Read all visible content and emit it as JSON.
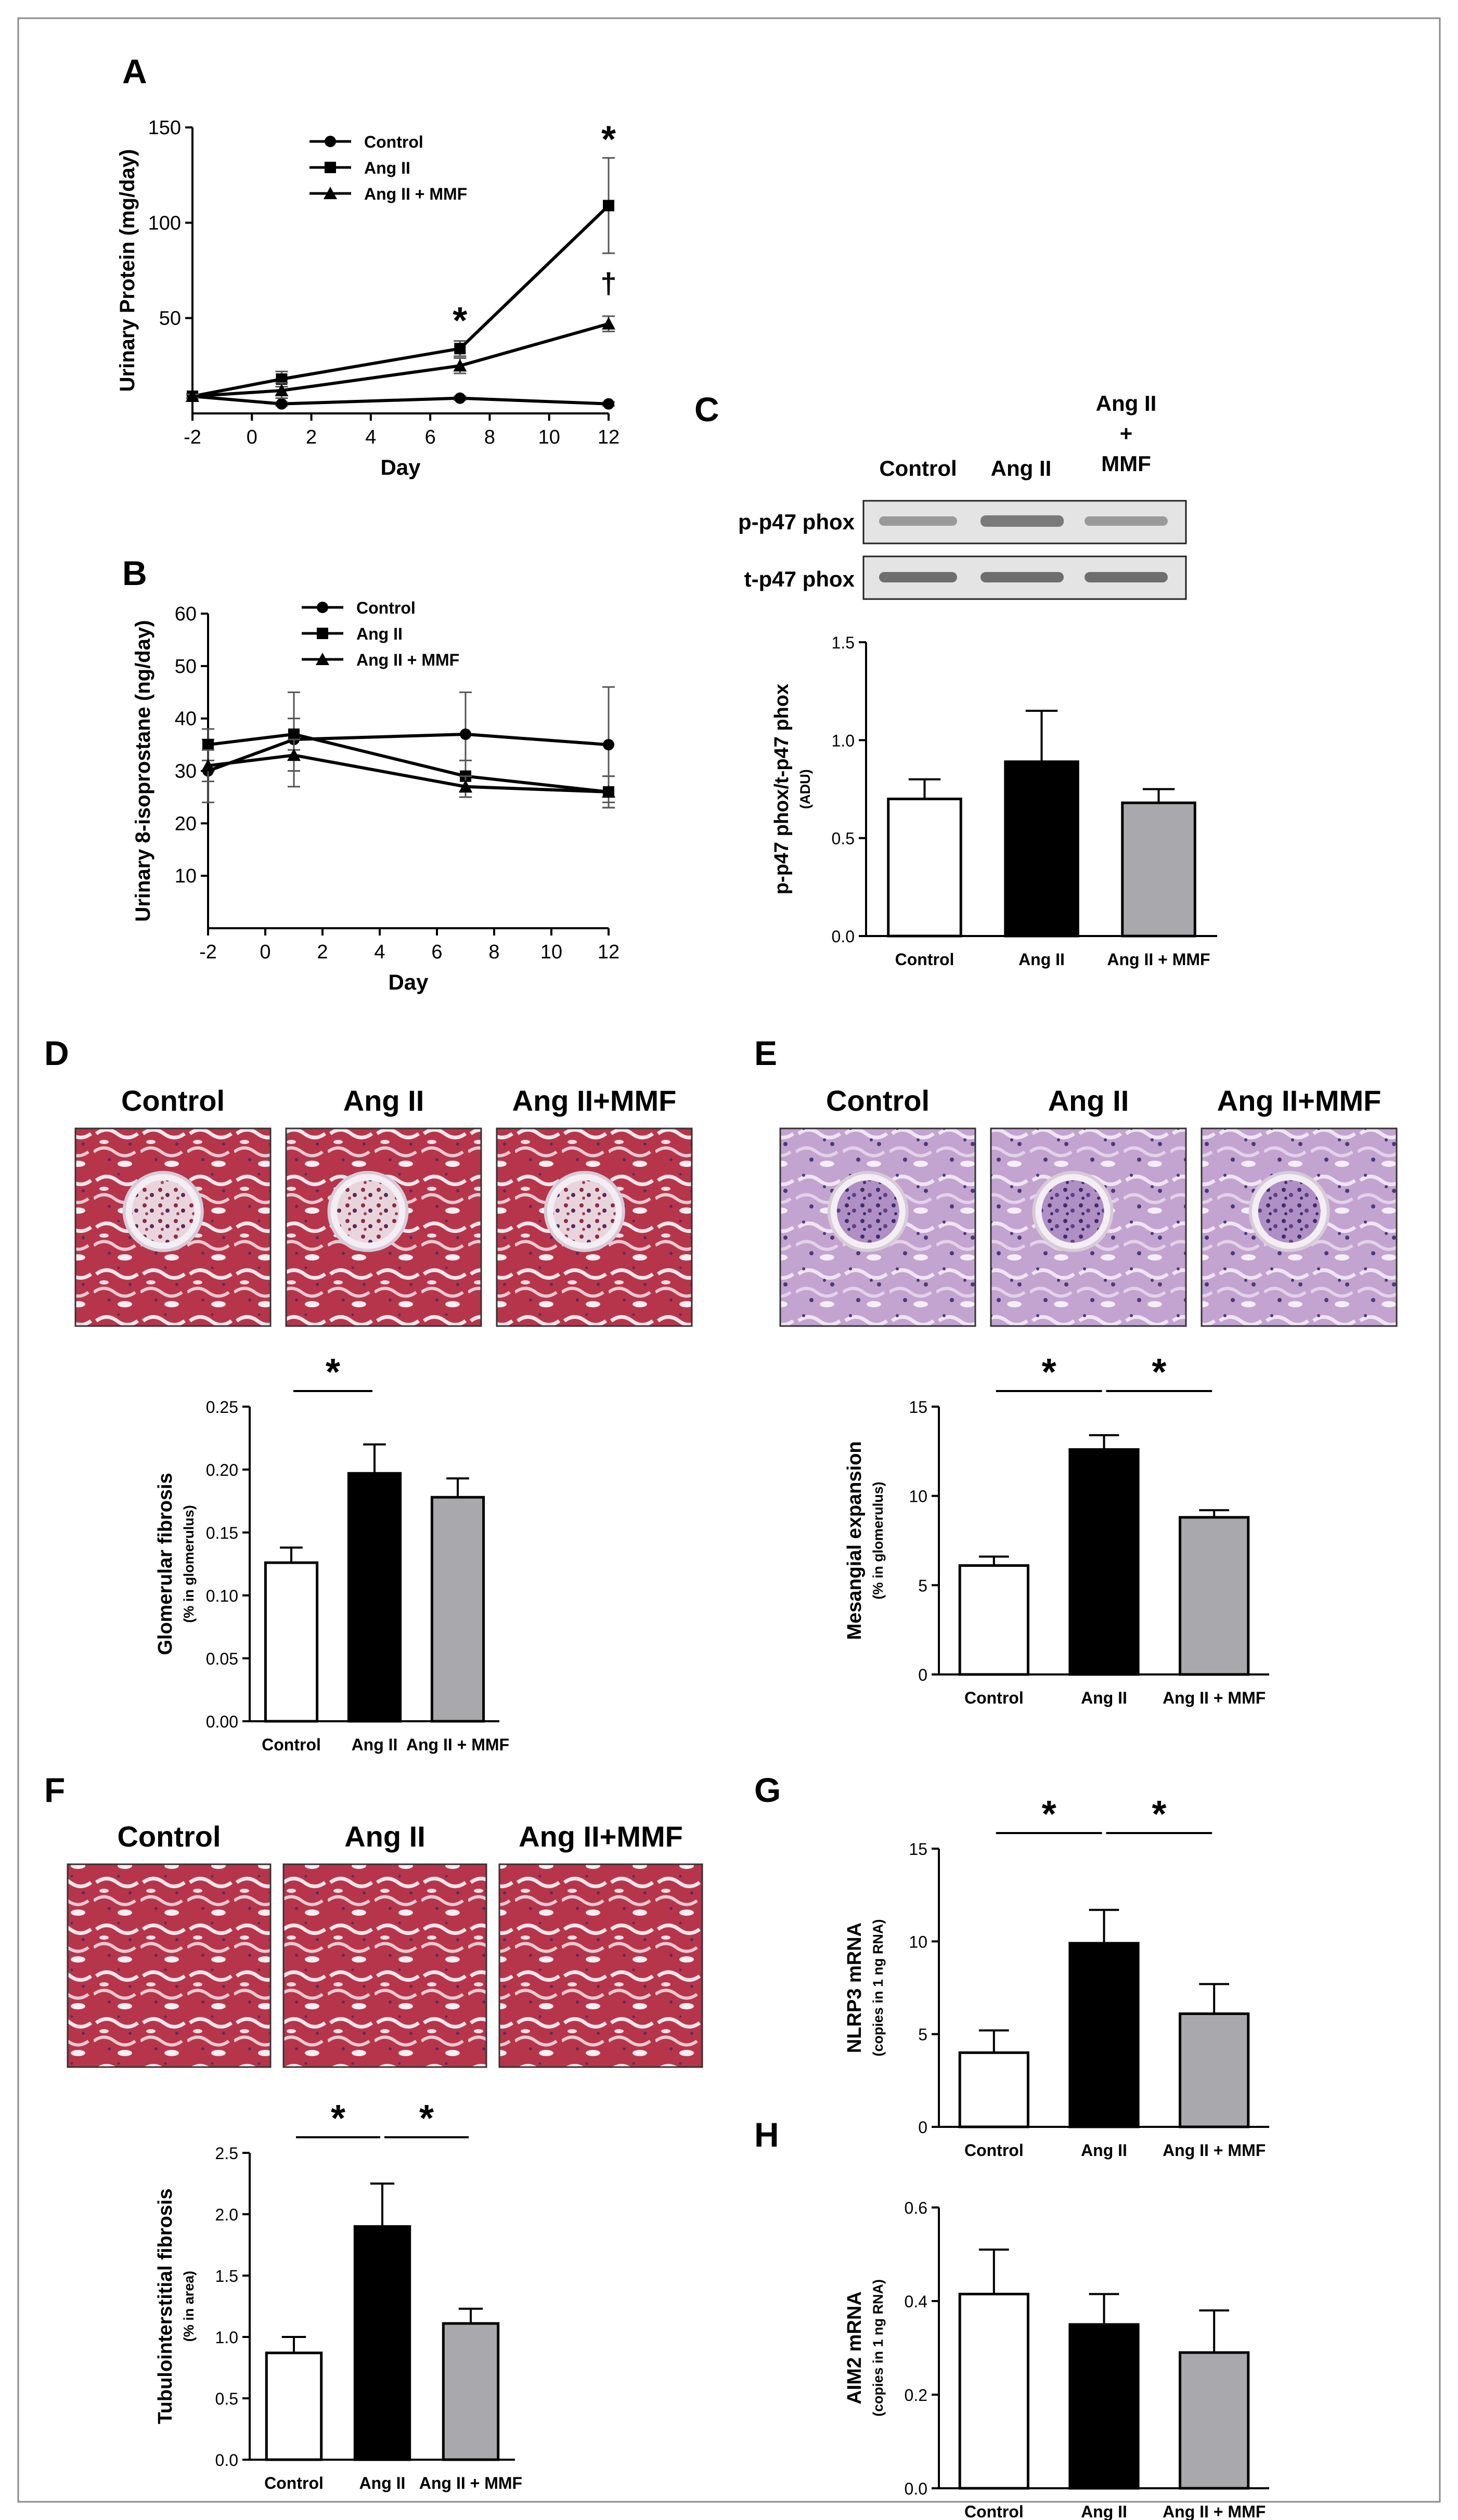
{
  "panels": {
    "A": {
      "letter": "A",
      "chart_data": {
        "type": "line",
        "xlabel": "Day",
        "ylabel": "Urinary Protein (mg/day)",
        "xlim": [
          -2,
          12
        ],
        "ylim": [
          0,
          150
        ],
        "xticks": [
          -2,
          0,
          2,
          4,
          6,
          8,
          10,
          12
        ],
        "yticks": [
          50,
          100,
          150
        ],
        "legend": "top-left",
        "series": [
          {
            "name": "Control",
            "marker": "circle",
            "x": [
              -2,
              1,
              7,
              12
            ],
            "y": [
              9,
              5,
              8,
              5
            ],
            "err": [
              1,
              1,
              1,
              1
            ]
          },
          {
            "name": "Ang II",
            "marker": "square",
            "x": [
              -2,
              1,
              7,
              12
            ],
            "y": [
              9,
              18,
              34,
              109
            ],
            "err": [
              1,
              4,
              4,
              25
            ]
          },
          {
            "name": "Ang II + MMF",
            "marker": "triangle",
            "x": [
              -2,
              1,
              7,
              12
            ],
            "y": [
              9,
              12,
              25,
              47
            ],
            "err": [
              1,
              4,
              4,
              4
            ]
          }
        ],
        "annotations": [
          {
            "text": "*",
            "x": 7,
            "y": 42
          },
          {
            "text": "*",
            "x": 12,
            "y": 137
          },
          {
            "text": "†",
            "x": 12,
            "y": 63
          }
        ]
      }
    },
    "B": {
      "letter": "B",
      "chart_data": {
        "type": "line",
        "xlabel": "Day",
        "ylabel": "Urinary 8-isoprostane (ng/day)",
        "xlim": [
          -2,
          12
        ],
        "ylim": [
          0,
          60
        ],
        "xticks": [
          -2,
          0,
          2,
          4,
          6,
          8,
          10,
          12
        ],
        "yticks": [
          10,
          20,
          30,
          40,
          50,
          60
        ],
        "legend": "top-center",
        "series": [
          {
            "name": "Control",
            "marker": "circle",
            "x": [
              -2,
              1,
              7,
              12
            ],
            "y": [
              30,
              36,
              37,
              35
            ],
            "err": [
              6,
              9,
              8,
              11
            ]
          },
          {
            "name": "Ang II",
            "marker": "square",
            "x": [
              -2,
              1,
              7,
              12
            ],
            "y": [
              35,
              37,
              29,
              26
            ],
            "err": [
              3,
              3,
              3,
              3
            ]
          },
          {
            "name": "Ang II + MMF",
            "marker": "triangle",
            "x": [
              -2,
              1,
              7,
              12
            ],
            "y": [
              31,
              33,
              27,
              26
            ],
            "err": [
              3,
              3,
              2,
              3
            ]
          }
        ]
      }
    },
    "C": {
      "letter": "C",
      "blot": {
        "lane_labels": [
          "Control",
          "Ang II",
          "Ang II\n+\nMMF"
        ],
        "rows": [
          "p-p47 phox",
          "t-p47 phox"
        ]
      },
      "chart_data": {
        "type": "bar",
        "categories": [
          "Control",
          "Ang II",
          "Ang II + MMF"
        ],
        "values": [
          0.7,
          0.89,
          0.68
        ],
        "errors": [
          0.1,
          0.26,
          0.07
        ],
        "colors": [
          "#ffffff",
          "#000000",
          "#a9a9ad"
        ],
        "ylabel": "p-p47 phox/t-p47 phox",
        "ylabel_unit": "(ADU)",
        "ylim": [
          0,
          1.5
        ],
        "yticks": [
          "0.0",
          "0.5",
          "1.0",
          "1.5"
        ]
      }
    },
    "D": {
      "letter": "D",
      "image_labels": [
        "Control",
        "Ang II",
        "Ang II+MMF"
      ],
      "chart_data": {
        "type": "bar",
        "categories": [
          "Control",
          "Ang II",
          "Ang II + MMF"
        ],
        "values": [
          0.126,
          0.197,
          0.178
        ],
        "errors": [
          0.012,
          0.023,
          0.015
        ],
        "colors": [
          "#ffffff",
          "#000000",
          "#a9a9ad"
        ],
        "ylabel": "Glomerular fibrosis",
        "ylabel_unit": "(% in glomerulus)",
        "ylim": [
          0,
          0.25
        ],
        "yticks": [
          "0.00",
          "0.05",
          "0.10",
          "0.15",
          "0.20",
          "0.25"
        ],
        "significance": [
          {
            "from": 0,
            "to": 1,
            "text": "*"
          }
        ]
      }
    },
    "E": {
      "letter": "E",
      "image_labels": [
        "Control",
        "Ang II",
        "Ang II+MMF"
      ],
      "chart_data": {
        "type": "bar",
        "categories": [
          "Control",
          "Ang II",
          "Ang II + MMF"
        ],
        "values": [
          6.1,
          12.6,
          8.8
        ],
        "errors": [
          0.5,
          0.8,
          0.4
        ],
        "colors": [
          "#ffffff",
          "#000000",
          "#a9a9ad"
        ],
        "ylabel": "Mesangial expansion",
        "ylabel_unit": "(% in glomerulus)",
        "ylim": [
          0,
          15
        ],
        "yticks": [
          "0",
          "5",
          "10",
          "15"
        ],
        "significance": [
          {
            "from": 0,
            "to": 1,
            "text": "*"
          },
          {
            "from": 1,
            "to": 2,
            "text": "*"
          }
        ]
      }
    },
    "F": {
      "letter": "F",
      "image_labels": [
        "Control",
        "Ang II",
        "Ang II+MMF"
      ],
      "chart_data": {
        "type": "bar",
        "categories": [
          "Control",
          "Ang II",
          "Ang II + MMF"
        ],
        "values": [
          0.87,
          1.9,
          1.11
        ],
        "errors": [
          0.13,
          0.35,
          0.12
        ],
        "colors": [
          "#ffffff",
          "#000000",
          "#a9a9ad"
        ],
        "ylabel": "Tubulointerstitial fibrosis",
        "ylabel_unit": "(% in area)",
        "ylim": [
          0,
          2.5
        ],
        "yticks": [
          "0.0",
          "0.5",
          "1.0",
          "1.5",
          "2.0",
          "2.5"
        ],
        "significance": [
          {
            "from": 0,
            "to": 1,
            "text": "*"
          },
          {
            "from": 1,
            "to": 2,
            "text": "*"
          }
        ]
      }
    },
    "G": {
      "letter": "G",
      "chart_data": {
        "type": "bar",
        "categories": [
          "Control",
          "Ang II",
          "Ang II + MMF"
        ],
        "values": [
          4.0,
          9.9,
          6.1
        ],
        "errors": [
          1.2,
          1.8,
          1.6
        ],
        "colors": [
          "#ffffff",
          "#000000",
          "#a9a9ad"
        ],
        "ylabel": "NLRP3 mRNA",
        "ylabel_unit": "(copies in 1 ng RNA)",
        "ylim": [
          0,
          15
        ],
        "yticks": [
          "0",
          "5",
          "10",
          "15"
        ],
        "significance": [
          {
            "from": 0,
            "to": 1,
            "text": "*"
          },
          {
            "from": 1,
            "to": 2,
            "text": "*"
          }
        ]
      }
    },
    "H": {
      "letter": "H",
      "chart_data": {
        "type": "bar",
        "categories": [
          "Control",
          "Ang II",
          "Ang II + MMF"
        ],
        "values": [
          0.415,
          0.35,
          0.29
        ],
        "errors": [
          0.095,
          0.065,
          0.09
        ],
        "colors": [
          "#ffffff",
          "#000000",
          "#a9a9ad"
        ],
        "ylabel": "AIM2 mRNA",
        "ylabel_unit": "(copies in 1 ng RNA)",
        "ylim": [
          0,
          0.6
        ],
        "yticks": [
          "0.0",
          "0.2",
          "0.4",
          "0.6"
        ]
      }
    }
  }
}
